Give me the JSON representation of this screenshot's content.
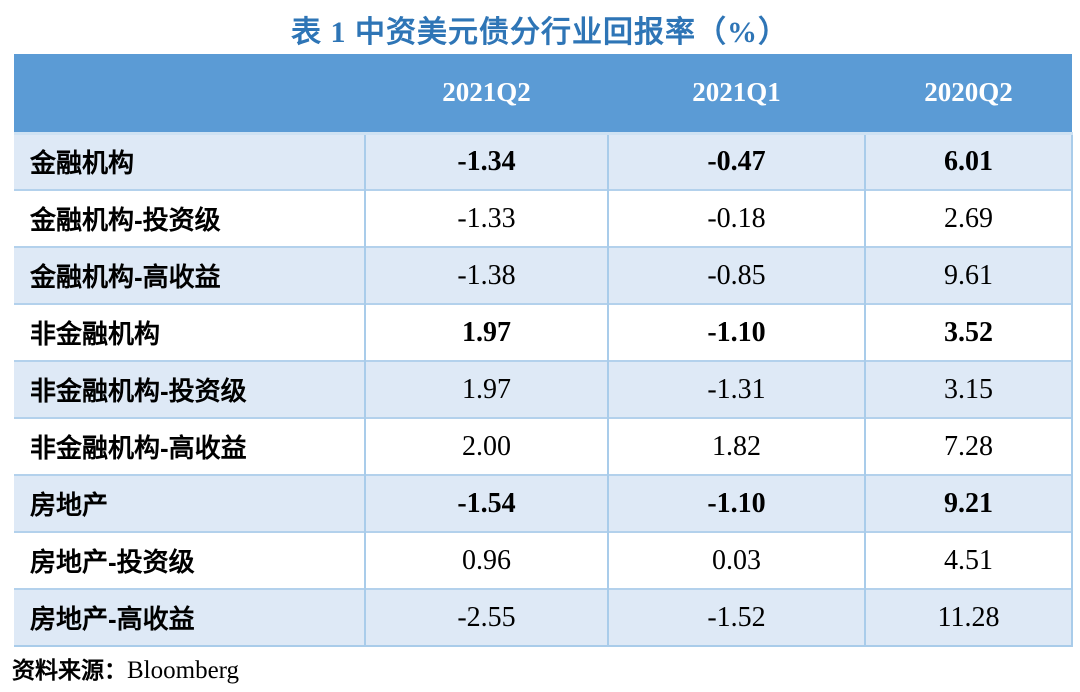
{
  "title": "表 1 中资美元债分行业回报率（%）",
  "source": {
    "label": "资料来源：",
    "value": "Bloomberg"
  },
  "colors": {
    "title_blue": "#2E75B6",
    "header_bg": "#5B9BD5",
    "header_text": "#FFFFFF",
    "row_alt_bg": "#DEE9F6",
    "row_bg": "#FFFFFF",
    "border_light_blue": "#A9CCEA",
    "text": "#000000"
  },
  "table": {
    "columns": [
      "",
      "2021Q2",
      "2021Q1",
      "2020Q2"
    ],
    "rows": [
      {
        "label": "金融机构",
        "values": [
          "-1.34",
          "-0.47",
          "6.01"
        ],
        "bold": true
      },
      {
        "label": "金融机构-投资级",
        "values": [
          "-1.33",
          "-0.18",
          "2.69"
        ],
        "bold": false
      },
      {
        "label": "金融机构-高收益",
        "values": [
          "-1.38",
          "-0.85",
          "9.61"
        ],
        "bold": false
      },
      {
        "label": "非金融机构",
        "values": [
          "1.97",
          "-1.10",
          "3.52"
        ],
        "bold": true
      },
      {
        "label": "非金融机构-投资级",
        "values": [
          "1.97",
          "-1.31",
          "3.15"
        ],
        "bold": false
      },
      {
        "label": "非金融机构-高收益",
        "values": [
          "2.00",
          "1.82",
          "7.28"
        ],
        "bold": false
      },
      {
        "label": "房地产",
        "values": [
          "-1.54",
          "-1.10",
          "9.21"
        ],
        "bold": true
      },
      {
        "label": "房地产-投资级",
        "values": [
          "0.96",
          "0.03",
          "4.51"
        ],
        "bold": false
      },
      {
        "label": "房地产-高收益",
        "values": [
          "-2.55",
          "-1.52",
          "11.28"
        ],
        "bold": false
      }
    ]
  }
}
